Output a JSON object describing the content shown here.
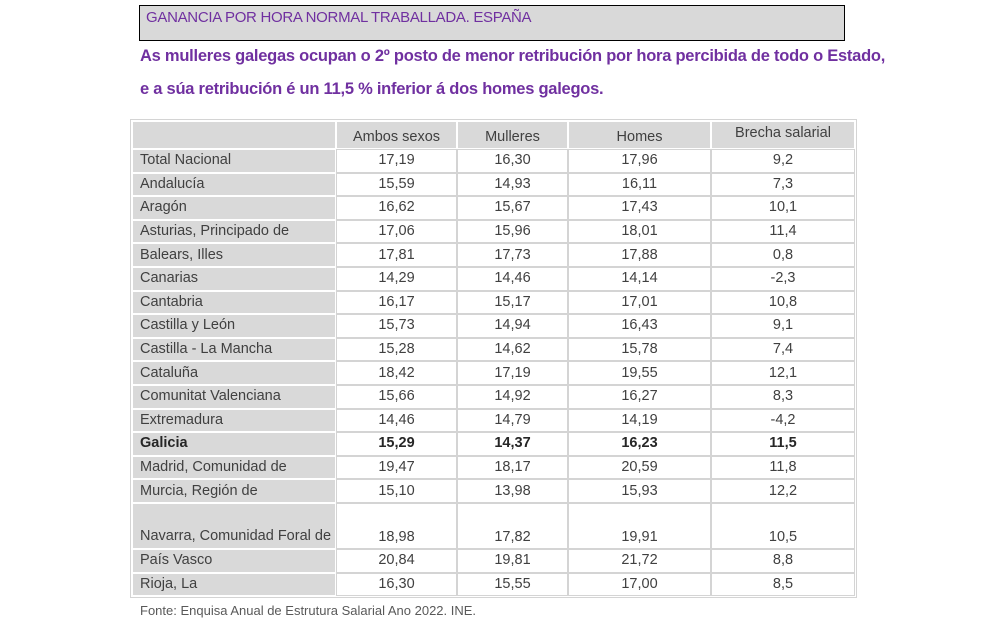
{
  "title": "GANANCIA POR HORA NORMAL TRABALLADA. ESPAÑA",
  "subtitle_lines": [
    "As mulleres galegas ocupan o 2º posto de menor retribución por hora percibida de todo o Estado,",
    "e a súa retribución é un 11,5 % inferior á dos homes galegos."
  ],
  "colors": {
    "accent_purple": "#7030A0",
    "header_gray": "#D9D9D9",
    "grid_border": "#D4D4D4"
  },
  "table": {
    "columns": [
      "",
      "Ambos sexos",
      "Mulleres",
      "Homes",
      "Brecha salarial"
    ],
    "rows": [
      {
        "region": "Total Nacional",
        "ambos": "17,19",
        "mulleres": "16,30",
        "homes": "17,96",
        "brecha": "9,2"
      },
      {
        "region": "Andalucía",
        "ambos": "15,59",
        "mulleres": "14,93",
        "homes": "16,11",
        "brecha": "7,3"
      },
      {
        "region": "Aragón",
        "ambos": "16,62",
        "mulleres": "15,67",
        "homes": "17,43",
        "brecha": "10,1"
      },
      {
        "region": "Asturias, Principado de",
        "ambos": "17,06",
        "mulleres": "15,96",
        "homes": "18,01",
        "brecha": "11,4"
      },
      {
        "region": "Balears, Illes",
        "ambos": "17,81",
        "mulleres": "17,73",
        "homes": "17,88",
        "brecha": "0,8"
      },
      {
        "region": "Canarias",
        "ambos": "14,29",
        "mulleres": "14,46",
        "homes": "14,14",
        "brecha": "-2,3"
      },
      {
        "region": "Cantabria",
        "ambos": "16,17",
        "mulleres": "15,17",
        "homes": "17,01",
        "brecha": "10,8"
      },
      {
        "region": "Castilla y León",
        "ambos": "15,73",
        "mulleres": "14,94",
        "homes": "16,43",
        "brecha": "9,1"
      },
      {
        "region": "Castilla - La Mancha",
        "ambos": "15,28",
        "mulleres": "14,62",
        "homes": "15,78",
        "brecha": "7,4"
      },
      {
        "region": "Cataluña",
        "ambos": "18,42",
        "mulleres": "17,19",
        "homes": "19,55",
        "brecha": "12,1"
      },
      {
        "region": "Comunitat Valenciana",
        "ambos": "15,66",
        "mulleres": "14,92",
        "homes": "16,27",
        "brecha": "8,3"
      },
      {
        "region": "Extremadura",
        "ambos": "14,46",
        "mulleres": "14,79",
        "homes": "14,19",
        "brecha": "-4,2"
      },
      {
        "region": "Galicia",
        "ambos": "15,29",
        "mulleres": "14,37",
        "homes": "16,23",
        "brecha": "11,5",
        "highlight": true
      },
      {
        "region": "Madrid, Comunidad de",
        "ambos": "19,47",
        "mulleres": "18,17",
        "homes": "20,59",
        "brecha": "11,8"
      },
      {
        "region": "Murcia, Región de",
        "ambos": "15,10",
        "mulleres": "13,98",
        "homes": "15,93",
        "brecha": "12,2"
      },
      {
        "region": "Navarra, Comunidad Foral de",
        "ambos": "18,98",
        "mulleres": "17,82",
        "homes": "19,91",
        "brecha": "10,5"
      },
      {
        "region": "País Vasco",
        "ambos": "20,84",
        "mulleres": "19,81",
        "homes": "21,72",
        "brecha": "8,8"
      },
      {
        "region": "Rioja, La",
        "ambos": "16,30",
        "mulleres": "15,55",
        "homes": "17,00",
        "brecha": "8,5"
      }
    ]
  },
  "footer": "Fonte: Enquisa Anual de Estrutura Salarial Ano 2022. INE."
}
